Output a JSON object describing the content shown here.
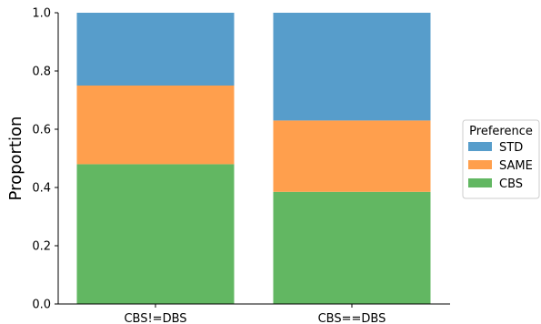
{
  "chart_data": {
    "type": "bar",
    "stacked": true,
    "categories": [
      "CBS!=DBS",
      "CBS==DBS"
    ],
    "series": [
      {
        "name": "CBS",
        "values": [
          0.48,
          0.385
        ],
        "color": "#62b762"
      },
      {
        "name": "SAME",
        "values": [
          0.27,
          0.245
        ],
        "color": "#ff9f4d"
      },
      {
        "name": "STD",
        "values": [
          0.25,
          0.37
        ],
        "color": "#579dcb"
      }
    ],
    "ylabel": "Proportion",
    "xlabel": "",
    "ylim": [
      0,
      1.0
    ],
    "yticks": [
      "0.0",
      "0.2",
      "0.4",
      "0.6",
      "0.8",
      "1.0"
    ],
    "grid": false,
    "legend": {
      "title": "Preference",
      "placement": "center-right",
      "entries": [
        "STD",
        "SAME",
        "CBS"
      ]
    }
  }
}
